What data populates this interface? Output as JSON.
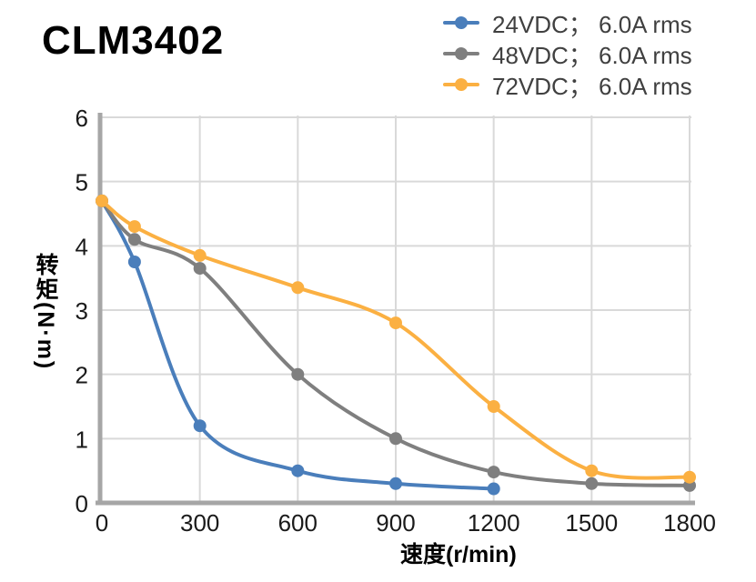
{
  "title": "CLM3402",
  "chart_data": {
    "type": "line",
    "title": "CLM3402",
    "xlabel": "速度(r/min)",
    "ylabel": "转矩(N·m)",
    "xlim": [
      0,
      1800
    ],
    "ylim": [
      0,
      6
    ],
    "xticks": [
      0,
      300,
      600,
      900,
      1200,
      1500,
      1800
    ],
    "yticks": [
      0,
      1,
      2,
      3,
      4,
      5,
      6
    ],
    "grid": true,
    "legend_position": "top-right",
    "axis_color": "#A6A6A6",
    "grid_color": "#D9D9D9",
    "tick_label_color": "#1A1A1A",
    "legend_text_color": "#404040",
    "series": [
      {
        "id": "24vdc",
        "name": "24VDC； 6.0A rms",
        "color": "#4A7EBB",
        "points": [
          [
            0,
            4.7
          ],
          [
            100,
            3.75
          ],
          [
            300,
            1.2
          ],
          [
            600,
            0.5
          ],
          [
            900,
            0.3
          ],
          [
            1200,
            0.22
          ]
        ]
      },
      {
        "id": "48vdc",
        "name": "48VDC； 6.0A rms",
        "color": "#7F7F7F",
        "points": [
          [
            0,
            4.7
          ],
          [
            100,
            4.1
          ],
          [
            300,
            3.65
          ],
          [
            600,
            2.0
          ],
          [
            900,
            1.0
          ],
          [
            1200,
            0.48
          ],
          [
            1500,
            0.3
          ],
          [
            1800,
            0.27
          ]
        ]
      },
      {
        "id": "72vdc",
        "name": "72VDC； 6.0A rms",
        "color": "#FBB042",
        "points": [
          [
            0,
            4.7
          ],
          [
            100,
            4.3
          ],
          [
            300,
            3.85
          ],
          [
            600,
            3.35
          ],
          [
            900,
            2.8
          ],
          [
            1200,
            1.5
          ],
          [
            1500,
            0.5
          ],
          [
            1800,
            0.4
          ]
        ]
      }
    ]
  }
}
